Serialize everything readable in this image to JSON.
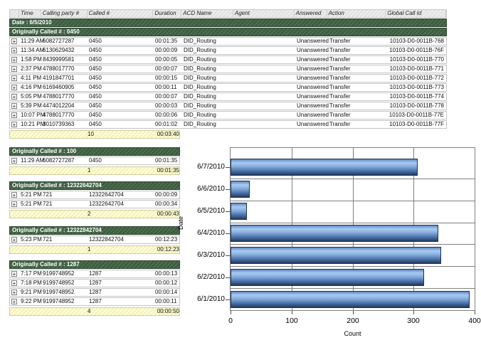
{
  "report": {
    "columns": [
      "",
      "Time",
      "Calling party #",
      "Called #",
      "Duration",
      "ACD Name",
      "Agent",
      "Answered",
      "Action",
      "Global Call Id"
    ],
    "date_header": "Date : 6/5/2010",
    "expand_icon": "+",
    "groups": [
      {
        "title": "Originally Called # : 0450",
        "rows": [
          [
            "11:29 AM",
            "6082727287",
            "0450",
            "00:01:35",
            "DID_Routing",
            "",
            "Unanswered",
            "Transfer",
            "10103-D0-0011B-768"
          ],
          [
            "11:34 AM",
            "6130629432",
            "0450",
            "00:00:09",
            "DID_Routing",
            "",
            "Unanswered",
            "Transfer",
            "10103-D0-0011B-76F"
          ],
          [
            "1:58 PM",
            "8439999581",
            "0450",
            "00:00:05",
            "DID_Routing",
            "",
            "Unanswered",
            "Transfer",
            "10103-D0-0011B-770"
          ],
          [
            "2:37 PM",
            "4788017770",
            "0450",
            "00:00:07",
            "DID_Routing",
            "",
            "Unanswered",
            "Transfer",
            "10103-D0-0011B-771"
          ],
          [
            "4:11 PM",
            "4191847701",
            "0450",
            "00:00:15",
            "DID_Routing",
            "",
            "Unanswered",
            "Transfer",
            "10103-D0-0011B-772"
          ],
          [
            "4:16 PM",
            "6169460905",
            "0450",
            "00:00:11",
            "DID_Routing",
            "",
            "Unanswered",
            "Transfer",
            "10103-D0-0011B-773"
          ],
          [
            "5:05 PM",
            "4788017770",
            "0450",
            "00:00:07",
            "DID_Routing",
            "",
            "Unanswered",
            "Transfer",
            "10103-D0-0011B-774"
          ],
          [
            "5:39 PM",
            "4474012204",
            "0450",
            "00:00:03",
            "DID_Routing",
            "",
            "Unanswered",
            "Transfer",
            "10103-D0-0011B-778"
          ],
          [
            "10:07 PM",
            "4788017770",
            "0450",
            "00:00:06",
            "DID_Routing",
            "",
            "Unanswered",
            "Transfer",
            "10103-D0-0011B-77E"
          ],
          [
            "10:21 PM",
            "3010739363",
            "0450",
            "00:01:02",
            "DID_Routing",
            "",
            "Unanswered",
            "Transfer",
            "10103-D0-0011B-77F"
          ]
        ],
        "summary": {
          "count": "10",
          "total_duration": "00:03:40"
        }
      },
      {
        "title": "Originally Called # : 100",
        "rows": [
          [
            "11:29 AM",
            "6082727287",
            "0450",
            "00:01:35"
          ]
        ],
        "summary": {
          "count": "1",
          "total_duration": "00:01:35"
        }
      },
      {
        "title": "Originally Called # : 12322642704",
        "rows": [
          [
            "5:21 PM",
            "721",
            "12322642704",
            "00:00:09"
          ],
          [
            "5:21 PM",
            "721",
            "12322642704",
            "00:00:34"
          ]
        ],
        "summary": {
          "count": "2",
          "total_duration": "00:00:43"
        }
      },
      {
        "title": "Originally Called # : 12322842704",
        "rows": [
          [
            "5:23 PM",
            "721",
            "12322842704",
            "00:12:23"
          ]
        ],
        "summary": {
          "count": "1",
          "total_duration": "00:12:23"
        }
      },
      {
        "title": "Originally Called # : 1287",
        "rows": [
          [
            "7:17 PM",
            "9199748952",
            "1287",
            "00:00:13"
          ],
          [
            "7:18 PM",
            "9199748952",
            "1287",
            "00:00:12"
          ],
          [
            "9:21 PM",
            "9199748952",
            "1287",
            "00:00:14"
          ],
          [
            "9:22 PM",
            "9199748952",
            "1287",
            "00:00:11"
          ]
        ],
        "summary": {
          "count": "4",
          "total_duration": "00:00:50"
        }
      }
    ]
  },
  "chart_data": {
    "type": "bar",
    "orientation": "horizontal",
    "categories": [
      "6/7/2010",
      "6/6/2010",
      "6/5/2010",
      "6/4/2010",
      "6/3/2010",
      "6/2/2010",
      "6/1/2010"
    ],
    "values": [
      307,
      32,
      27,
      340,
      345,
      317,
      392
    ],
    "xlabel": "Count",
    "ylabel": "Date",
    "xlim": [
      0,
      400
    ],
    "xticks": [
      0,
      100,
      200,
      300,
      400
    ],
    "grid": true,
    "legend": false,
    "bar_color": "#6f9dd6"
  },
  "colors": {
    "group_header_bg": "#47684b",
    "summary_bg": "#fdfcc9",
    "bar_highlight": "#a9cbf0",
    "bar_dark": "#1f3860",
    "grid_line": "#7f7f7f"
  }
}
